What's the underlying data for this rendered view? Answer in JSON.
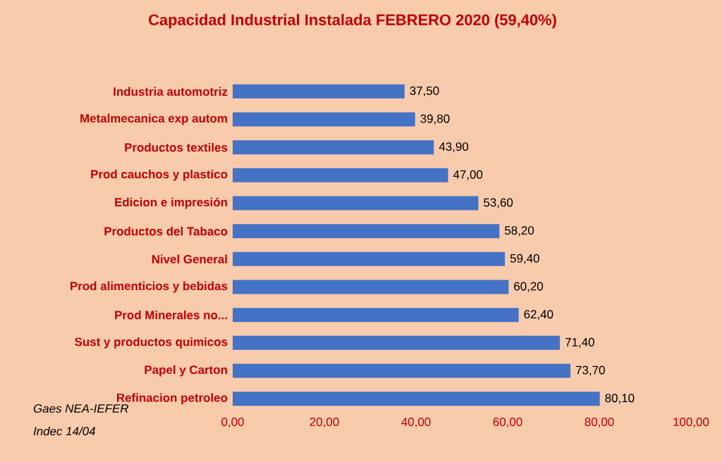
{
  "chart_data": {
    "type": "bar",
    "orientation": "horizontal",
    "title": "Capacidad Industrial Instalada FEBRERO  2020  (59,40%)",
    "categories": [
      "Industria automotriz",
      "Metalmecanica  exp autom",
      "Productos textiles",
      "Prod cauchos y plastico",
      "Edicion e impresión",
      "Productos del Tabaco",
      "Nivel General",
      "Prod alimenticios  y bebidas",
      "Prod Minerales no...",
      "Sust y productos quimicos",
      "Papel y Carton",
      "Refinacion petroleo"
    ],
    "values": [
      37.5,
      39.8,
      43.9,
      47.0,
      53.6,
      58.2,
      59.4,
      60.2,
      62.4,
      71.4,
      73.7,
      80.1
    ],
    "value_labels": [
      "37,50",
      "39,80",
      "43,90",
      "47,00",
      "53,60",
      "58,20",
      "59,40",
      "60,20",
      "62,40",
      "71,40",
      "73,70",
      "80,10"
    ],
    "color": "#4472c4",
    "xlim": [
      0,
      100
    ],
    "xticks": [
      {
        "value": 0,
        "label": "0,00"
      },
      {
        "value": 20,
        "label": "20,00"
      },
      {
        "value": 40,
        "label": "40,00"
      },
      {
        "value": 60,
        "label": "60,00"
      },
      {
        "value": 80,
        "label": "80,00"
      },
      {
        "value": 100,
        "label": "100,00"
      }
    ],
    "annotations": [
      "Gaes NEA-IEFER",
      "Indec 14/04"
    ]
  }
}
